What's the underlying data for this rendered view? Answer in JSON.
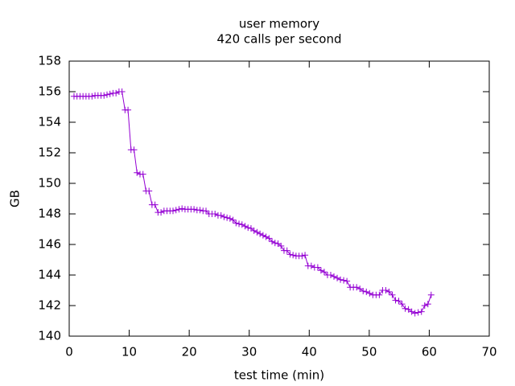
{
  "chart_data": {
    "type": "line",
    "title": "user memory",
    "subtitle": "420 calls per second",
    "x_label": "test time (min)",
    "y_label": "GB",
    "xlim": [
      0,
      70
    ],
    "xticks": [
      0,
      10,
      20,
      30,
      40,
      50,
      60,
      70
    ],
    "ylim": [
      140,
      158
    ],
    "yticks": [
      140,
      142,
      144,
      146,
      148,
      150,
      152,
      154,
      156,
      158
    ],
    "grid": false,
    "x": [
      0.8,
      1.3,
      1.8,
      2.3,
      2.8,
      3.3,
      3.8,
      4.3,
      4.8,
      5.3,
      5.8,
      6.3,
      6.8,
      7.3,
      7.8,
      8.3,
      8.8,
      9.3,
      9.8,
      10.3,
      10.8,
      11.3,
      11.8,
      12.3,
      12.8,
      13.3,
      13.8,
      14.3,
      14.8,
      15.3,
      15.8,
      16.3,
      16.8,
      17.3,
      17.8,
      18.3,
      18.8,
      19.3,
      19.8,
      20.3,
      20.8,
      21.3,
      21.8,
      22.3,
      22.8,
      23.3,
      23.8,
      24.3,
      24.8,
      25.3,
      25.8,
      26.3,
      26.8,
      27.3,
      27.8,
      28.3,
      28.8,
      29.3,
      29.8,
      30.3,
      30.8,
      31.3,
      31.8,
      32.3,
      32.8,
      33.3,
      33.8,
      34.3,
      34.8,
      35.3,
      35.8,
      36.3,
      36.8,
      37.3,
      37.8,
      38.3,
      38.8,
      39.3,
      39.8,
      40.34,
      40.88,
      41.42,
      41.96,
      42.5,
      43.04,
      43.58,
      44.12,
      44.66,
      45.2,
      45.74,
      46.28,
      46.82,
      47.36,
      47.9,
      48.44,
      48.98,
      49.52,
      50.06,
      50.6,
      51.14,
      51.68,
      52.22,
      52.76,
      53.3,
      53.84,
      54.38,
      54.92,
      55.46,
      56.0,
      56.54,
      57.08,
      57.62,
      58.16,
      58.7,
      59.24,
      59.78,
      60.32
    ],
    "series": [
      {
        "color": "#9400d3",
        "values": [
          155.7,
          155.7,
          155.7,
          155.7,
          155.7,
          155.7,
          155.7,
          155.75,
          155.75,
          155.75,
          155.75,
          155.8,
          155.85,
          155.9,
          155.9,
          156.0,
          156.0,
          154.8,
          154.8,
          152.2,
          152.2,
          150.7,
          150.6,
          150.6,
          149.5,
          149.5,
          148.6,
          148.6,
          148.1,
          148.1,
          148.2,
          148.2,
          148.2,
          148.2,
          148.25,
          148.3,
          148.35,
          148.3,
          148.3,
          148.3,
          148.3,
          148.25,
          148.25,
          148.2,
          148.2,
          148.0,
          148.0,
          148.0,
          147.9,
          147.9,
          147.8,
          147.75,
          147.7,
          147.6,
          147.4,
          147.35,
          147.3,
          147.2,
          147.1,
          147.05,
          146.9,
          146.8,
          146.7,
          146.6,
          146.5,
          146.4,
          146.2,
          146.1,
          146.05,
          145.9,
          145.6,
          145.6,
          145.35,
          145.3,
          145.25,
          145.25,
          145.25,
          145.3,
          144.6,
          144.6,
          144.5,
          144.5,
          144.3,
          144.2,
          144.0,
          144.0,
          143.9,
          143.8,
          143.7,
          143.65,
          143.6,
          143.2,
          143.2,
          143.2,
          143.1,
          142.95,
          142.9,
          142.8,
          142.7,
          142.7,
          142.7,
          143.0,
          143.0,
          142.9,
          142.7,
          142.35,
          142.3,
          142.1,
          141.8,
          141.75,
          141.6,
          141.5,
          141.55,
          141.6,
          142.0,
          142.1,
          142.7
        ]
      }
    ]
  }
}
